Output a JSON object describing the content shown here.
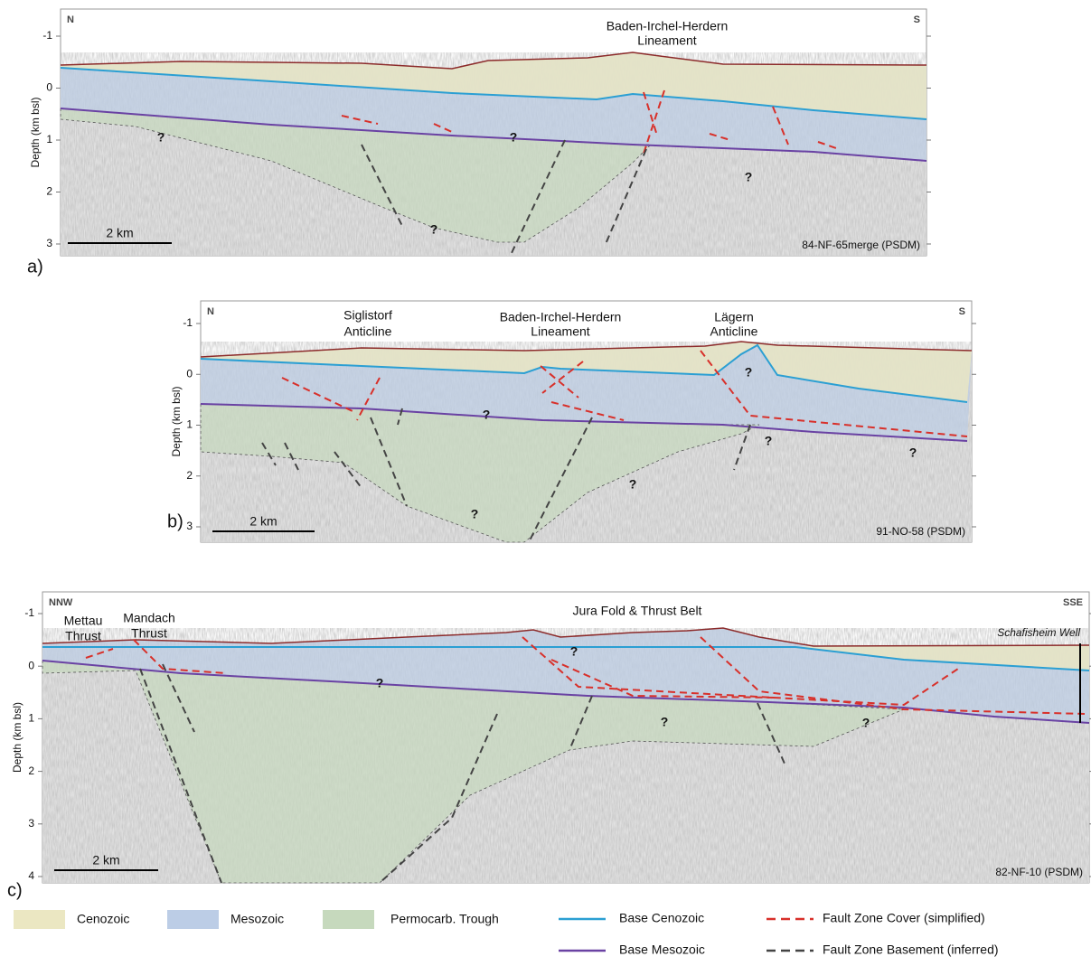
{
  "panels": [
    {
      "label": "a)",
      "left": "N",
      "right": "S",
      "y_axis_title": "Depth (km bsl)",
      "yticks": [
        -1,
        0,
        1,
        2,
        3
      ],
      "annotations": [
        "Baden-Irchel-Herdern",
        "Lineament"
      ],
      "unknowns": [
        "?",
        "?",
        "?",
        "?"
      ],
      "scale_bar": "2 km",
      "profile": "84-NF-65merge (PSDM)"
    },
    {
      "label": "b)",
      "left": "N",
      "right": "S",
      "y_axis_title": "Depth (km bsl)",
      "yticks": [
        -1,
        0,
        1,
        2,
        3
      ],
      "annotations": [
        "Siglistorf",
        "Anticline",
        "Baden-Irchel-Herdern",
        "Lineament",
        "Lägern",
        "Anticline"
      ],
      "unknowns": [
        "?",
        "?",
        "?",
        "?",
        "?",
        "?"
      ],
      "scale_bar": "2 km",
      "profile": "91-NO-58 (PSDM)"
    },
    {
      "label": "c)",
      "left": "NNW",
      "right": "SSE",
      "y_axis_title": "Depth (km bsl)",
      "yticks": [
        -1,
        0,
        1,
        2,
        3,
        4
      ],
      "annotations": [
        "Mettau",
        "Thrust",
        "Mandach",
        "Thrust",
        "Jura Fold & Thrust Belt",
        "Schafisheim Well"
      ],
      "unknowns": [
        "?",
        "?",
        "?",
        "?"
      ],
      "scale_bar": "2 km",
      "profile": "82-NF-10 (PSDM)"
    }
  ],
  "legend": {
    "fills": [
      "Cenozoic",
      "Mesozoic",
      "Permocarb. Trough"
    ],
    "lines": [
      "Base Cenozoic",
      "Base Mesozoic",
      "Fault Zone Cover (simplified)",
      "Fault Zone Basement (inferred)"
    ]
  }
}
